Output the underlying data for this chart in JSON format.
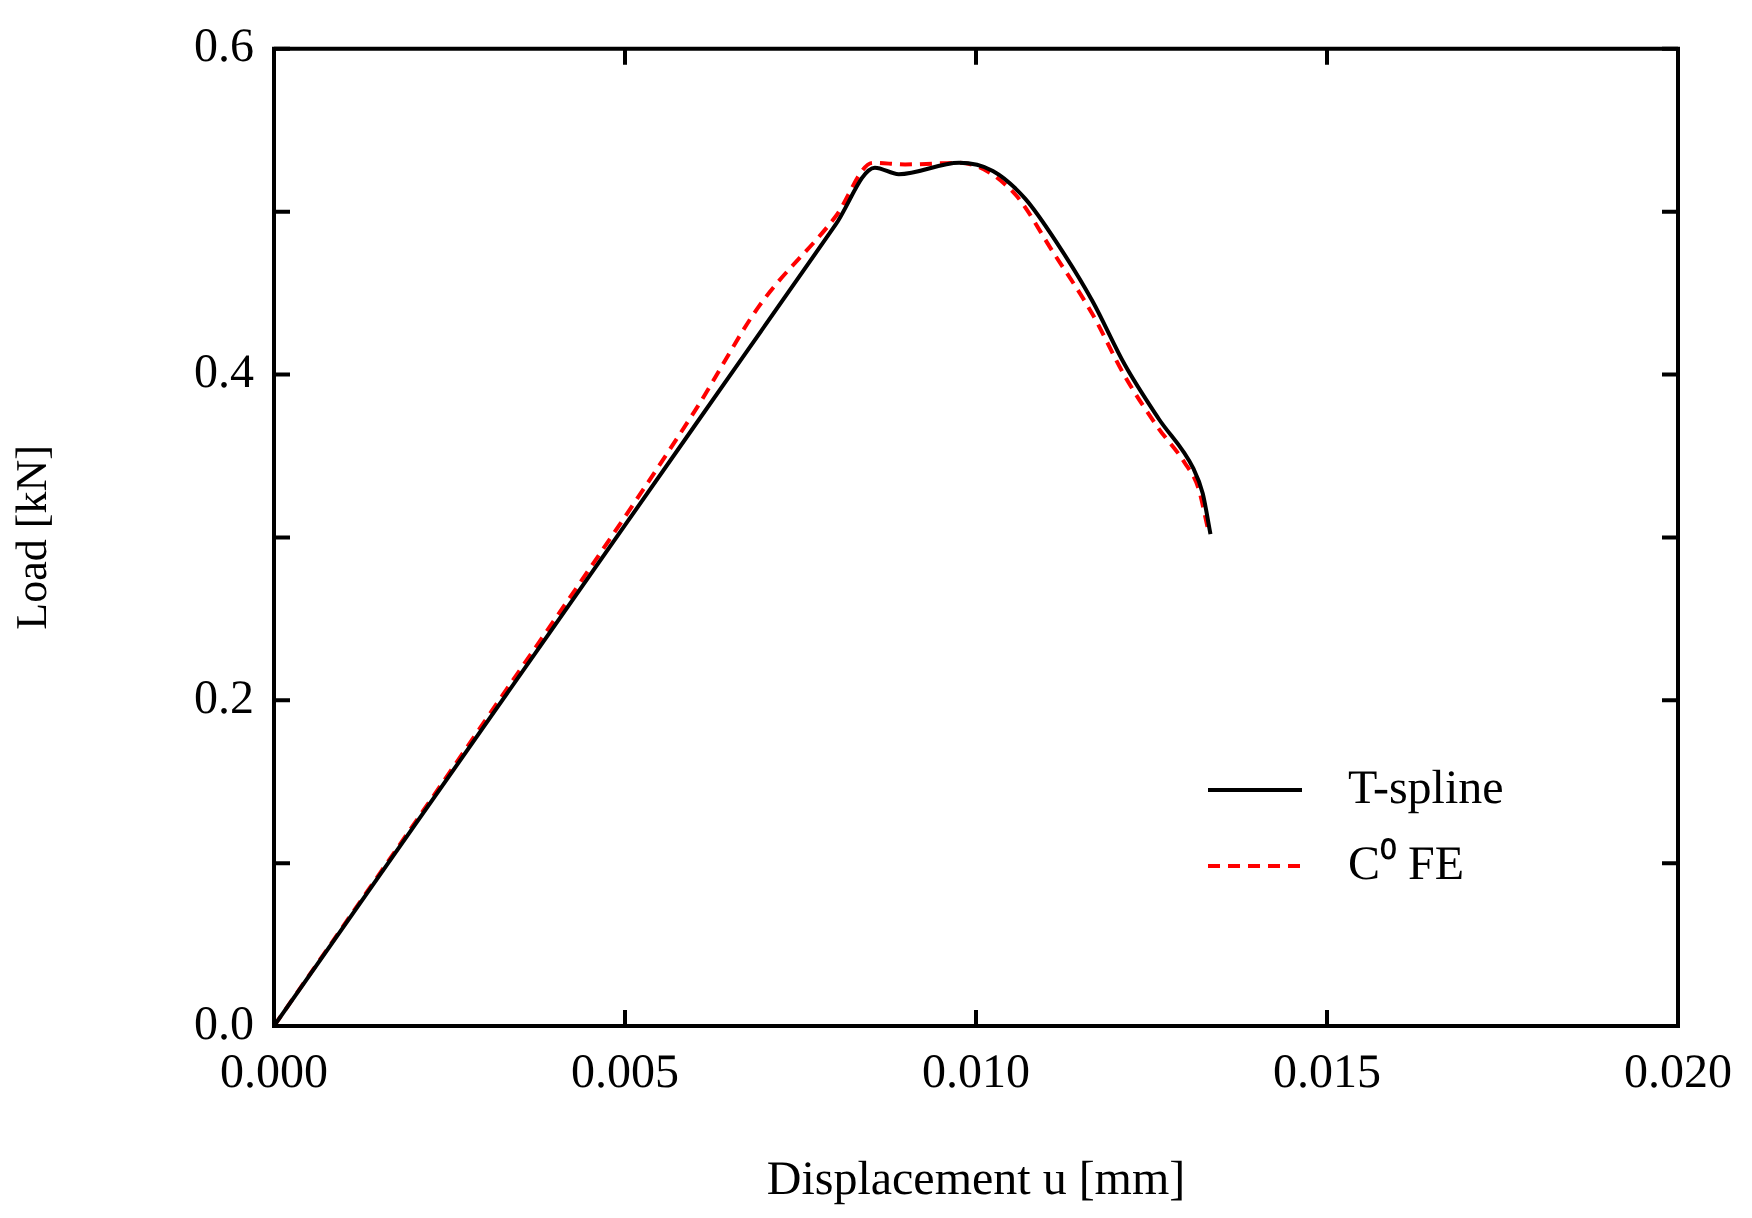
{
  "chart_data": {
    "type": "line",
    "xlabel": "Displacement u [mm]",
    "ylabel": "Load [kN]",
    "xlim": [
      0,
      0.02
    ],
    "ylim": [
      0,
      0.6
    ],
    "xticks": [
      {
        "value": 0,
        "label": "0.000"
      },
      {
        "value": 0.005,
        "label": "0.005"
      },
      {
        "value": 0.01,
        "label": "0.010"
      },
      {
        "value": 0.015,
        "label": "0.015"
      },
      {
        "value": 0.02,
        "label": "0.020"
      }
    ],
    "yticks": [
      {
        "value": 0,
        "label": "0.0"
      },
      {
        "value": 0.1,
        "label": null
      },
      0.2,
      {
        "value": 0.3,
        "label": null
      },
      0.4,
      {
        "value": 0.5,
        "label": null
      },
      0.6
    ],
    "grid": false,
    "legend": "bottom right",
    "marker": "none",
    "series": [
      {
        "name": "T-spline",
        "color": "#000000",
        "line_style": "solid",
        "x": [
          0,
          0.002,
          0.004,
          0.006,
          0.008,
          0.00856,
          0.0089,
          0.00976,
          0.01024,
          0.0107,
          0.01118,
          0.01166,
          0.01212,
          0.0126,
          0.0131,
          0.01323,
          0.01334
        ],
        "values": [
          0,
          0.123,
          0.246,
          0.369,
          0.492,
          0.527,
          0.523,
          0.53,
          0.525,
          0.508,
          0.479,
          0.445,
          0.406,
          0.373,
          0.342,
          0.327,
          0.302
        ]
      },
      {
        "name": "C⁰ FE",
        "color": "#ff0000",
        "line_style": "dashed",
        "x": [
          0,
          0.003,
          0.006,
          0.00691,
          0.008,
          0.00853,
          0.00899,
          0.00976,
          0.01053,
          0.0111,
          0.01166,
          0.01212,
          0.0126,
          0.01297,
          0.01317,
          0.0133
        ],
        "values": [
          0,
          0.187,
          0.378,
          0.442,
          0.497,
          0.53,
          0.529,
          0.53,
          0.512,
          0.475,
          0.437,
          0.399,
          0.367,
          0.346,
          0.33,
          0.306
        ]
      }
    ]
  }
}
